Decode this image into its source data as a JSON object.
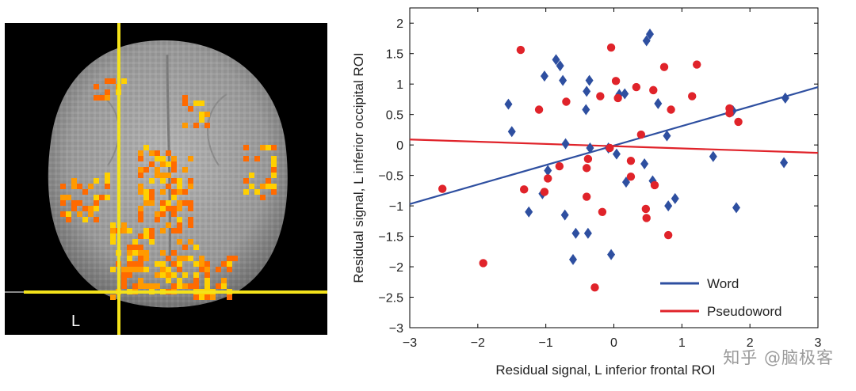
{
  "brain_image": {
    "orientation_label": "L",
    "crosshair_color": "#f4e21a",
    "background_color": "#000000",
    "activation_colors": [
      "#ff6a00",
      "#ff9a00",
      "#ffd000"
    ]
  },
  "chart_data": {
    "type": "scatter",
    "xlabel": "Residual signal, L inferior frontal ROI",
    "ylabel": "Residual signal, L inferior occipital ROI",
    "xlim": [
      -3,
      3
    ],
    "ylim": [
      -3,
      2.25
    ],
    "xticks": [
      -3,
      -2,
      -1,
      0,
      1,
      2,
      3
    ],
    "xtick_labels": [
      "−3",
      "−2",
      "−1",
      "0",
      "1",
      "2",
      "3"
    ],
    "yticks": [
      2,
      1.5,
      1,
      0.5,
      0,
      -0.5,
      -1,
      -1.5,
      -2,
      -2.5,
      -3
    ],
    "ytick_labels": [
      "2",
      "1.5",
      "1",
      "0.5",
      "0",
      "−0.5",
      "−1",
      "−1.5",
      "−2",
      "−2.5",
      "−3"
    ],
    "legend_position": "bottom-right",
    "series": [
      {
        "name": "Word",
        "color": "#2e4fa0",
        "marker": "diamond",
        "points": [
          [
            0.53,
            1.82
          ],
          [
            0.48,
            1.71
          ],
          [
            -0.85,
            1.4
          ],
          [
            -0.79,
            1.3
          ],
          [
            -1.02,
            1.13
          ],
          [
            -0.75,
            1.06
          ],
          [
            -0.36,
            1.06
          ],
          [
            -0.4,
            0.88
          ],
          [
            0.08,
            0.83
          ],
          [
            0.16,
            0.84
          ],
          [
            -1.55,
            0.67
          ],
          [
            0.65,
            0.68
          ],
          [
            -0.41,
            0.58
          ],
          [
            2.52,
            0.77
          ],
          [
            1.75,
            0.56
          ],
          [
            -1.5,
            0.22
          ],
          [
            0.78,
            0.15
          ],
          [
            -0.71,
            0.02
          ],
          [
            -0.35,
            -0.05
          ],
          [
            -0.08,
            -0.05
          ],
          [
            0.04,
            -0.15
          ],
          [
            1.46,
            -0.19
          ],
          [
            2.5,
            -0.29
          ],
          [
            0.45,
            -0.31
          ],
          [
            -0.97,
            -0.42
          ],
          [
            0.18,
            -0.61
          ],
          [
            0.57,
            -0.59
          ],
          [
            -1.05,
            -0.8
          ],
          [
            0.9,
            -0.88
          ],
          [
            0.8,
            -1.0
          ],
          [
            1.8,
            -1.03
          ],
          [
            -1.25,
            -1.1
          ],
          [
            -0.72,
            -1.15
          ],
          [
            -0.56,
            -1.45
          ],
          [
            -0.38,
            -1.45
          ],
          [
            -0.04,
            -1.8
          ],
          [
            -0.6,
            -1.88
          ]
        ]
      },
      {
        "name": "Pseudoword",
        "color": "#e0232a",
        "marker": "circle",
        "points": [
          [
            -1.37,
            1.56
          ],
          [
            -0.04,
            1.6
          ],
          [
            0.74,
            1.28
          ],
          [
            1.22,
            1.32
          ],
          [
            0.03,
            1.05
          ],
          [
            0.33,
            0.95
          ],
          [
            0.58,
            0.9
          ],
          [
            1.15,
            0.8
          ],
          [
            -0.2,
            0.8
          ],
          [
            -0.7,
            0.71
          ],
          [
            0.06,
            0.77
          ],
          [
            -1.1,
            0.58
          ],
          [
            0.84,
            0.58
          ],
          [
            1.7,
            0.6
          ],
          [
            1.7,
            0.52
          ],
          [
            1.83,
            0.38
          ],
          [
            0.4,
            0.17
          ],
          [
            -0.06,
            -0.05
          ],
          [
            0.25,
            -0.26
          ],
          [
            -0.38,
            -0.23
          ],
          [
            -0.8,
            -0.35
          ],
          [
            -0.4,
            -0.38
          ],
          [
            0.25,
            -0.52
          ],
          [
            -0.97,
            -0.55
          ],
          [
            0.6,
            -0.66
          ],
          [
            -2.52,
            -0.72
          ],
          [
            -1.32,
            -0.73
          ],
          [
            -1.02,
            -0.77
          ],
          [
            -0.4,
            -0.85
          ],
          [
            0.47,
            -1.05
          ],
          [
            -0.17,
            -1.1
          ],
          [
            0.48,
            -1.2
          ],
          [
            0.8,
            -1.48
          ],
          [
            -1.92,
            -1.94
          ],
          [
            -0.28,
            -2.34
          ]
        ]
      }
    ],
    "fit_lines": [
      {
        "name": "Word",
        "color": "#2e4fa0",
        "x": [
          -3,
          3
        ],
        "y": [
          -0.97,
          0.95
        ]
      },
      {
        "name": "Pseudoword",
        "color": "#e0232a",
        "x": [
          -3,
          3
        ],
        "y": [
          0.09,
          -0.13
        ]
      }
    ]
  },
  "watermark": "知乎 @脑极客"
}
